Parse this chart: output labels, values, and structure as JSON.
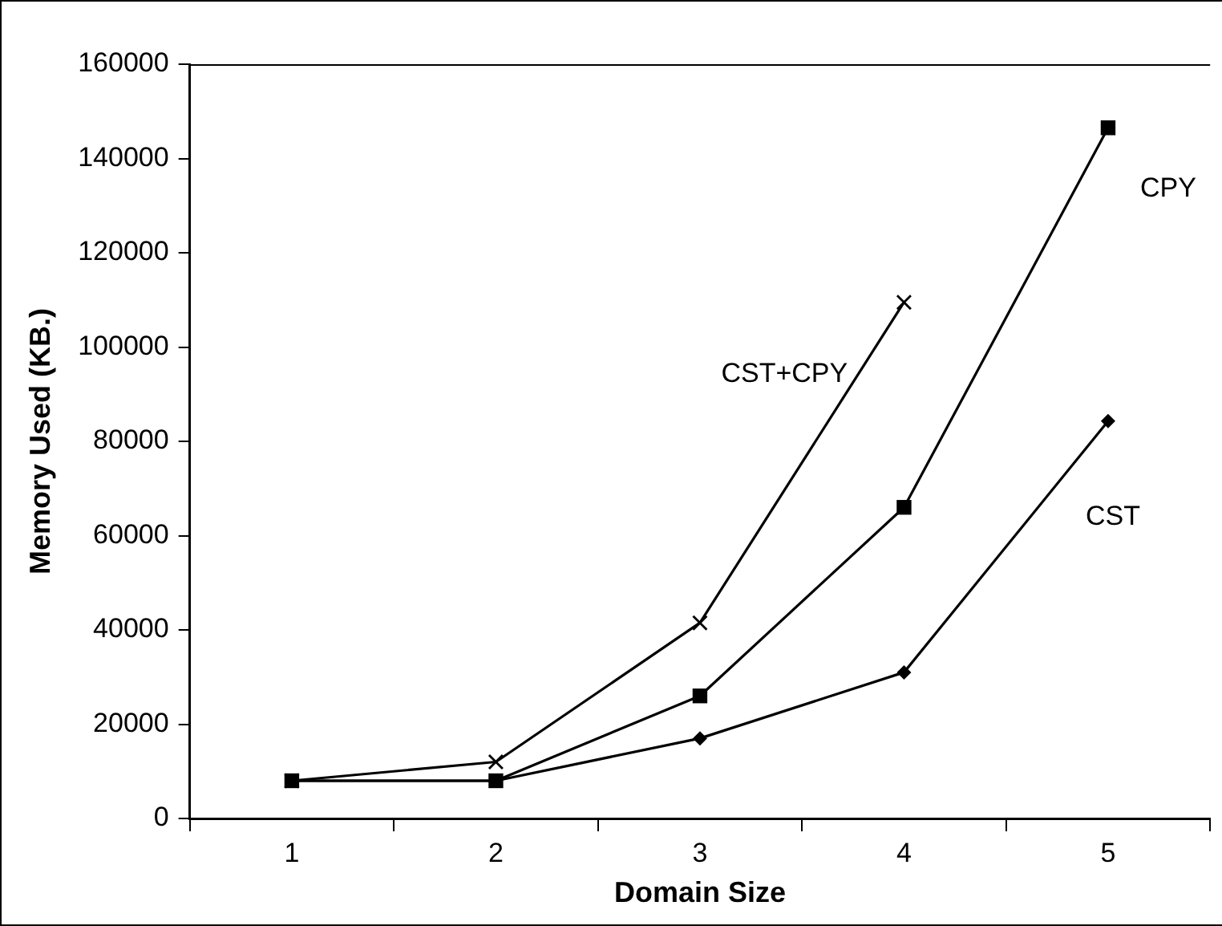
{
  "chart_data": {
    "type": "line",
    "xlabel": "Domain Size",
    "ylabel": "Memory Used (KB.)",
    "categories": [
      "1",
      "2",
      "3",
      "4",
      "5"
    ],
    "ylim": [
      0,
      160000
    ],
    "yticks": [
      0,
      20000,
      40000,
      60000,
      80000,
      100000,
      120000,
      140000,
      160000
    ],
    "grid": false,
    "legend": false,
    "line_style": "solid",
    "series": [
      {
        "name": "CST+CPY",
        "color": "#000000",
        "marker": "cross",
        "values": [
          8000,
          12000,
          41500,
          109500,
          null
        ]
      },
      {
        "name": "CPY",
        "color": "#000000",
        "marker": "square",
        "values": [
          8000,
          8000,
          26000,
          66000,
          146500
        ]
      },
      {
        "name": "CST",
        "color": "#000000",
        "marker": "diamond",
        "values": [
          8000,
          8000,
          17000,
          31000,
          84300
        ]
      }
    ]
  }
}
